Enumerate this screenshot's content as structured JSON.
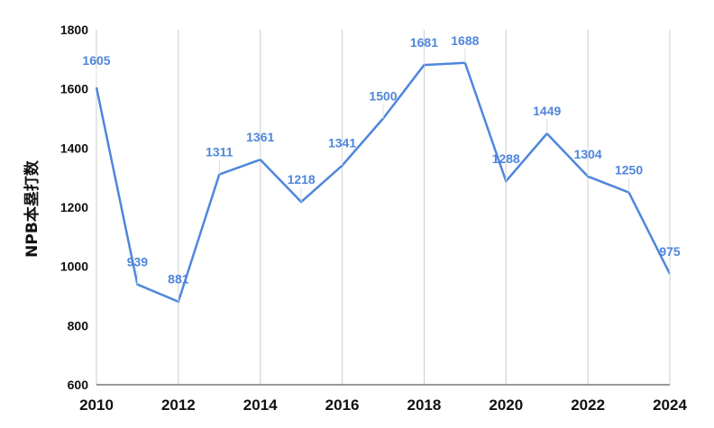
{
  "chart_data": {
    "type": "line",
    "title": "",
    "xlabel": "",
    "ylabel": "NPB本塁打数",
    "x": [
      2010,
      2011,
      2012,
      2013,
      2014,
      2015,
      2016,
      2017,
      2018,
      2019,
      2020,
      2021,
      2022,
      2023,
      2024
    ],
    "xticks": [
      "2010",
      "2012",
      "2014",
      "2016",
      "2018",
      "2020",
      "2022",
      "2024"
    ],
    "ylim": [
      600,
      1800
    ],
    "yticks": [
      600,
      800,
      1000,
      1200,
      1400,
      1600,
      1800
    ],
    "grid": "vertical",
    "series": [
      {
        "values": [
          1605,
          939,
          881,
          1311,
          1361,
          1218,
          1341,
          1500,
          1681,
          1688,
          1288,
          1449,
          1304,
          1250,
          975
        ],
        "labels": [
          "1605",
          "939",
          "881",
          "1311",
          "1361",
          "1218",
          "1341",
          "1500",
          "1681",
          "1688",
          "1288",
          "1449",
          "1304",
          "1250",
          "975"
        ],
        "color": "#4f86dc"
      }
    ]
  }
}
